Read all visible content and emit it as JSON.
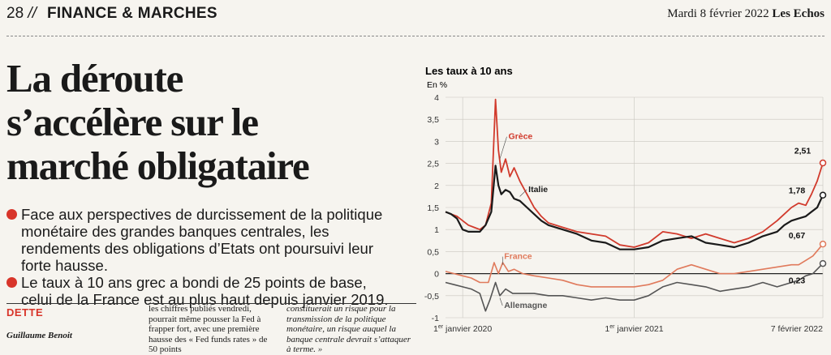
{
  "header": {
    "page_number": "28",
    "separator": "//",
    "section": "FINANCE & MARCHES",
    "date": "Mardi 8 février 2022",
    "publication": "Les Echos"
  },
  "article": {
    "headline_lines": [
      "La déroute",
      "s’accélère sur le",
      "marché obligataire"
    ],
    "lead": [
      "Face aux perspectives de durcissement de la politique monétaire des grandes banques centrales, les rendements des obligations d’Etats ont poursuivi leur forte hausse.",
      "Le taux à 10 ans grec a bondi de 25 points de base, celui de la France est au plus haut depuis janvier 2019."
    ],
    "rubric": "DETTE",
    "author": "Guillaume Benoit",
    "column2": "les chiffres publiés vendredi, pourrait même pousser la Fed à frapper fort, avec une première hausse des « Fed funds rates » de 50 points",
    "column3": "constituerait un risque pour la transmission de la politique monétaire, un risque auquel la banque centrale devrait s’attaquer à terme. »"
  },
  "colors": {
    "accent_red": "#d8352a",
    "greece": "#d13a2c",
    "italy": "#1a1a1a",
    "france": "#e07a5c",
    "germany": "#555555"
  },
  "chart_data": {
    "type": "line",
    "title": "Les taux à 10 ans",
    "ylabel": "En %",
    "ylim": [
      -1,
      4
    ],
    "yticks": [
      "4",
      "3,5",
      "3",
      "2,5",
      "2",
      "1,5",
      "1",
      "0,5",
      "0",
      "-0,5",
      "-1"
    ],
    "xlim": [
      0,
      25.2
    ],
    "xticks": [
      {
        "month": 0,
        "label_day": "1",
        "label_sup": "er",
        "label_rest": " janvier 2020"
      },
      {
        "month": 12,
        "label_day": "1",
        "label_sup": "er",
        "label_rest": " janvier 2021"
      },
      {
        "month": 25.2,
        "label_day": "7 février 2022",
        "label_sup": "",
        "label_rest": ""
      }
    ],
    "x_unit": "months since 1 January 2020",
    "series": [
      {
        "name": "Grèce",
        "end_label": "2,51",
        "x": [
          -1.2,
          -0.8,
          -0.4,
          0,
          0.4,
          0.8,
          1.2,
          1.6,
          2.0,
          2.3,
          2.5,
          2.7,
          3.0,
          3.3,
          3.6,
          4.0,
          4.5,
          5,
          5.5,
          6,
          7,
          8,
          9,
          10,
          11,
          12,
          13,
          14,
          15,
          16,
          17,
          18,
          19,
          20,
          21,
          22,
          22.5,
          23,
          23.5,
          24,
          24.4,
          24.8,
          25.2
        ],
        "y": [
          1.4,
          1.35,
          1.3,
          1.2,
          1.1,
          1.05,
          1.0,
          1.1,
          1.6,
          3.95,
          2.8,
          2.3,
          2.6,
          2.2,
          2.4,
          2.1,
          1.8,
          1.5,
          1.3,
          1.15,
          1.05,
          0.95,
          0.9,
          0.85,
          0.65,
          0.6,
          0.7,
          0.95,
          0.9,
          0.8,
          0.9,
          0.8,
          0.7,
          0.8,
          0.95,
          1.2,
          1.35,
          1.5,
          1.6,
          1.55,
          1.8,
          2.1,
          2.51
        ]
      },
      {
        "name": "Italie",
        "end_label": "1,78",
        "x": [
          -1.2,
          -0.8,
          -0.4,
          0,
          0.4,
          0.8,
          1.2,
          1.6,
          2.0,
          2.3,
          2.5,
          2.7,
          3.0,
          3.3,
          3.6,
          4.0,
          4.5,
          5,
          5.5,
          6,
          7,
          8,
          9,
          10,
          11,
          12,
          13,
          14,
          15,
          16,
          17,
          18,
          19,
          20,
          21,
          22,
          22.5,
          23,
          23.5,
          24,
          24.4,
          24.8,
          25.2
        ],
        "y": [
          1.4,
          1.35,
          1.25,
          1.0,
          0.95,
          0.95,
          0.95,
          1.1,
          1.4,
          2.45,
          2.0,
          1.8,
          1.9,
          1.85,
          1.7,
          1.65,
          1.5,
          1.35,
          1.2,
          1.1,
          1.0,
          0.9,
          0.75,
          0.7,
          0.55,
          0.55,
          0.6,
          0.75,
          0.8,
          0.85,
          0.7,
          0.65,
          0.6,
          0.7,
          0.85,
          0.95,
          1.1,
          1.2,
          1.25,
          1.3,
          1.4,
          1.5,
          1.78
        ]
      },
      {
        "name": "France",
        "end_label": "0,67",
        "x": [
          -1.2,
          -0.6,
          0,
          0.6,
          1.2,
          1.8,
          2.2,
          2.5,
          2.8,
          3.2,
          3.6,
          4.2,
          5,
          6,
          7,
          8,
          9,
          10,
          11,
          12,
          13,
          14,
          15,
          16,
          17,
          18,
          19,
          20,
          21,
          22,
          23,
          23.5,
          24,
          24.5,
          25.2
        ],
        "y": [
          0.05,
          0.0,
          -0.05,
          -0.1,
          -0.2,
          -0.2,
          0.25,
          0.0,
          0.25,
          0.05,
          0.1,
          0.0,
          -0.05,
          -0.1,
          -0.15,
          -0.25,
          -0.3,
          -0.3,
          -0.3,
          -0.3,
          -0.25,
          -0.15,
          0.1,
          0.2,
          0.1,
          0.0,
          0.0,
          0.05,
          0.1,
          0.15,
          0.2,
          0.2,
          0.3,
          0.4,
          0.67
        ]
      },
      {
        "name": "Allemagne",
        "end_label": "0,23",
        "x": [
          -1.2,
          -0.6,
          0,
          0.6,
          1.2,
          1.6,
          1.9,
          2.3,
          2.6,
          3.0,
          3.5,
          4.2,
          5,
          6,
          7,
          8,
          9,
          10,
          11,
          12,
          13,
          14,
          15,
          16,
          17,
          18,
          19,
          20,
          21,
          22,
          23,
          23.5,
          24,
          24.5,
          25.2
        ],
        "y": [
          -0.2,
          -0.25,
          -0.3,
          -0.35,
          -0.45,
          -0.85,
          -0.6,
          -0.2,
          -0.5,
          -0.35,
          -0.45,
          -0.45,
          -0.45,
          -0.5,
          -0.5,
          -0.55,
          -0.6,
          -0.55,
          -0.6,
          -0.6,
          -0.5,
          -0.3,
          -0.2,
          -0.25,
          -0.3,
          -0.4,
          -0.35,
          -0.3,
          -0.2,
          -0.3,
          -0.2,
          -0.15,
          -0.05,
          0.0,
          0.23
        ]
      }
    ],
    "grid": true
  }
}
